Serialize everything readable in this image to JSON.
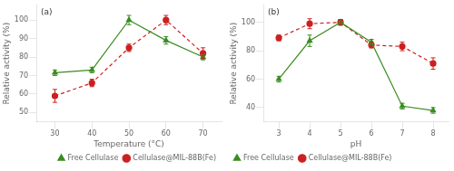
{
  "chart_data": [
    {
      "type": "line",
      "annotation": "(a)",
      "xlabel": "Temperature (°C)",
      "ylabel": "Relative activity (%)",
      "x": [
        30,
        40,
        50,
        60,
        70
      ],
      "series": [
        {
          "name": "Free Cellulase",
          "color": "#3a8c20",
          "marker": "triangle",
          "line_style": "solid",
          "values": [
            71.5,
            73,
            100,
            89,
            80
          ],
          "yerr": [
            1.5,
            1.5,
            2.5,
            2.0,
            1.5
          ]
        },
        {
          "name": "Cellulase@MIL-88B(Fe)",
          "color": "#cc2020",
          "marker": "circle",
          "line_style": "dashed",
          "values": [
            59,
            66,
            85,
            100,
            82
          ],
          "yerr": [
            3.5,
            2,
            2,
            2.5,
            3
          ]
        }
      ],
      "xlim": [
        25,
        75
      ],
      "xticks": [
        30,
        40,
        50,
        60,
        70
      ],
      "ylim": [
        45,
        108
      ],
      "yticks": [
        50,
        60,
        70,
        80,
        90,
        100
      ],
      "legend": "lower right",
      "grid": false
    },
    {
      "type": "line",
      "annotation": "(b)",
      "xlabel": "pH",
      "ylabel": "Relative activity (%)",
      "x": [
        3,
        4,
        5,
        6,
        7,
        8
      ],
      "series": [
        {
          "name": "Free Cellulase",
          "color": "#3a8c20",
          "marker": "triangle",
          "line_style": "solid",
          "values": [
            60,
            87,
            100,
            86,
            41,
            38
          ],
          "yerr": [
            2,
            4,
            2,
            2,
            2,
            2
          ]
        },
        {
          "name": "Cellulase@MIL-88B(Fe)",
          "color": "#cc2020",
          "marker": "circle",
          "line_style": "dashed",
          "values": [
            89,
            99,
            100,
            84,
            83,
            71
          ],
          "yerr": [
            2,
            3.5,
            2,
            2,
            3,
            4
          ]
        }
      ],
      "xlim": [
        2.5,
        8.5
      ],
      "xticks": [
        3,
        4,
        5,
        6,
        7,
        8
      ],
      "ylim": [
        30,
        112
      ],
      "yticks": [
        40,
        60,
        80,
        100
      ],
      "legend": "lower left",
      "grid": false
    }
  ]
}
